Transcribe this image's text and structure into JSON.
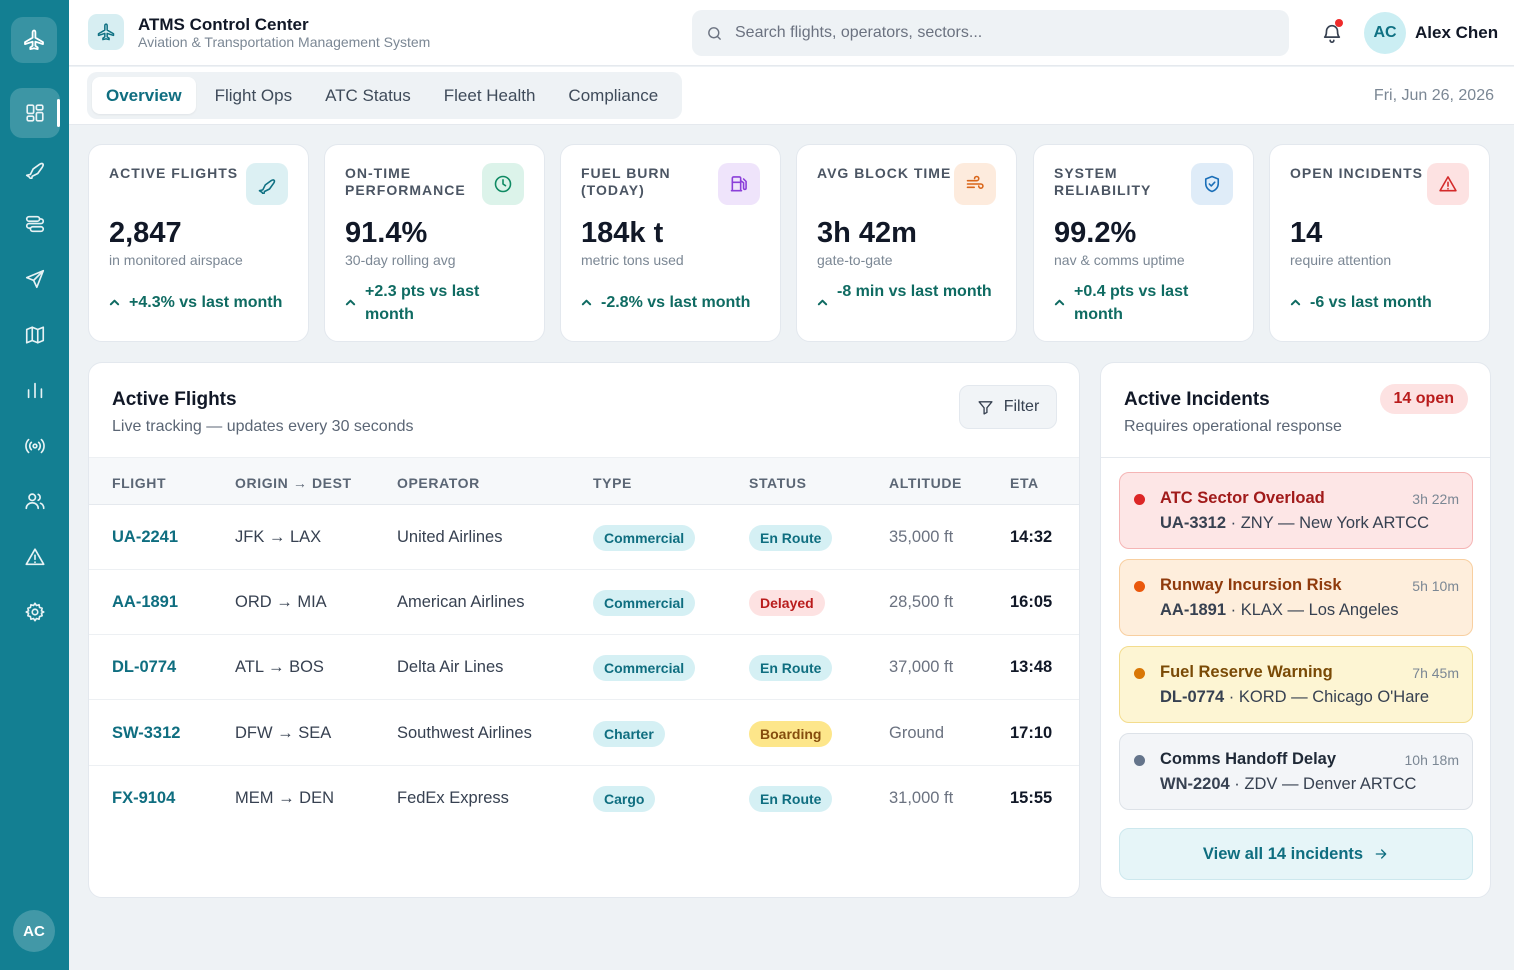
{
  "app": {
    "title": "ATMS Control Center",
    "subtitle": "Aviation & Transportation Management System",
    "brand_color": "#137f92"
  },
  "search": {
    "placeholder": "Search flights, operators, sectors..."
  },
  "user": {
    "initials": "AC",
    "name": "Alex Chen",
    "has_notification": true
  },
  "sidebar": {
    "logo_icon": "airplane-icon",
    "items": [
      {
        "icon": "dashboard-grid-icon",
        "active": true
      },
      {
        "icon": "plane-departure-icon",
        "active": false
      },
      {
        "icon": "route-icon",
        "active": false
      },
      {
        "icon": "send-navigation-icon",
        "active": false
      },
      {
        "icon": "map-icon",
        "active": false
      },
      {
        "icon": "bar-chart-icon",
        "active": false
      },
      {
        "icon": "radio-signal-icon",
        "active": false
      },
      {
        "icon": "users-icon",
        "active": false
      },
      {
        "icon": "alert-triangle-icon",
        "active": false
      },
      {
        "icon": "settings-gear-icon",
        "active": false
      }
    ],
    "user_initials": "AC"
  },
  "tabs": [
    {
      "label": "Overview",
      "active": true
    },
    {
      "label": "Flight Ops",
      "active": false
    },
    {
      "label": "ATC Status",
      "active": false
    },
    {
      "label": "Fleet Health",
      "active": false
    },
    {
      "label": "Compliance",
      "active": false
    }
  ],
  "date": "Fri, Jun 26, 2026",
  "kpis": [
    {
      "label": "Active Flights",
      "value": "2,847",
      "sub": "in monitored airspace",
      "trend": "+4.3% vs last month",
      "icon": "plane-icon",
      "icon_color": "#0f7183",
      "icon_bg": "#dcf0f3"
    },
    {
      "label": "On-Time Performance",
      "value": "91.4%",
      "sub": "30-day rolling avg",
      "trend": "+2.3 pts vs last month",
      "icon": "clock-icon",
      "icon_color": "#0f8a63",
      "icon_bg": "#dcf3ea"
    },
    {
      "label": "Fuel Burn (Today)",
      "value": "184k t",
      "sub": "metric tons used",
      "trend": "-2.8% vs last month",
      "icon": "fuel-pump-icon",
      "icon_color": "#8b3fd9",
      "icon_bg": "#efe4fb"
    },
    {
      "label": "Avg Block Time",
      "value": "3h 42m",
      "sub": "gate-to-gate",
      "trend": "-8 min vs last month",
      "icon": "wind-icon",
      "icon_color": "#d9661a",
      "icon_bg": "#fdebdd"
    },
    {
      "label": "System Reliability",
      "value": "99.2%",
      "sub": "nav & comms uptime",
      "trend": "+0.4 pts vs last month",
      "icon": "shield-check-icon",
      "icon_color": "#1b6fb8",
      "icon_bg": "#dfecf8"
    },
    {
      "label": "Open Incidents",
      "value": "14",
      "sub": "require attention",
      "trend": "-6 vs last month",
      "icon": "alert-triangle-icon",
      "icon_color": "#d42a2a",
      "icon_bg": "#fde2e2"
    }
  ],
  "flights": {
    "title": "Active Flights",
    "subtitle": "Live tracking — updates every 30 seconds",
    "filter_label": "Filter",
    "columns": [
      "FLIGHT",
      "ORIGIN → DEST",
      "OPERATOR",
      "TYPE",
      "STATUS",
      "ALTITUDE",
      "ETA"
    ],
    "rows": [
      {
        "flight": "UA-2241",
        "route": "JFK → LAX",
        "operator": "United Airlines",
        "type": "Commercial",
        "status": "En Route",
        "altitude": "35,000 ft",
        "eta": "14:32"
      },
      {
        "flight": "AA-1891",
        "route": "ORD → MIA",
        "operator": "American Airlines",
        "type": "Commercial",
        "status": "Delayed",
        "altitude": "28,500 ft",
        "eta": "16:05"
      },
      {
        "flight": "DL-0774",
        "route": "ATL → BOS",
        "operator": "Delta Air Lines",
        "type": "Commercial",
        "status": "En Route",
        "altitude": "37,000 ft",
        "eta": "13:48"
      },
      {
        "flight": "SW-3312",
        "route": "DFW → SEA",
        "operator": "Southwest Airlines",
        "type": "Charter",
        "status": "Boarding",
        "altitude": "Ground",
        "eta": "17:10"
      },
      {
        "flight": "FX-9104",
        "route": "MEM → DEN",
        "operator": "FedEx Express",
        "type": "Cargo",
        "status": "En Route",
        "altitude": "31,000 ft",
        "eta": "15:55"
      }
    ]
  },
  "incidents": {
    "title": "Active Incidents",
    "subtitle": "Requires operational response",
    "badge": "14 open",
    "items": [
      {
        "title": "ATC Sector Overload",
        "time": "3h 22m",
        "flight": "UA-3312",
        "detail": " · ZNY — New York ARTCC",
        "severity": "critical",
        "dot": "#dc2626",
        "bg": "#fde6e6",
        "border": "#f5b5b5",
        "title_color": "#a11b1b"
      },
      {
        "title": "Runway Incursion Risk",
        "time": "5h 10m",
        "flight": "AA-1891",
        "detail": " · KLAX — Los Angeles",
        "severity": "high",
        "dot": "#ea580c",
        "bg": "#feeedc",
        "border": "#f8cfa0",
        "title_color": "#8f3a0c"
      },
      {
        "title": "Fuel Reserve Warning",
        "time": "7h 45m",
        "flight": "DL-0774",
        "detail": " · KORD — Chicago O'Hare",
        "severity": "medium",
        "dot": "#d97706",
        "bg": "#fdf5d3",
        "border": "#f3dc8d",
        "title_color": "#7a4a06"
      },
      {
        "title": "Comms Handoff Delay",
        "time": "10h 18m",
        "flight": "WN-2204",
        "detail": " · ZDV — Denver ARTCC",
        "severity": "low",
        "dot": "#64748b",
        "bg": "#f3f5f8",
        "border": "#dde2e8",
        "title_color": "#1f2937"
      }
    ],
    "view_all_label": "View all 14 incidents"
  },
  "pill_styles": {
    "Commercial": {
      "bg": "#d5f0f4",
      "fg": "#0f6e80"
    },
    "Charter": {
      "bg": "#d5f0f4",
      "fg": "#0f6e80"
    },
    "Cargo": {
      "bg": "#d5f0f4",
      "fg": "#0f6e80"
    },
    "En Route": {
      "bg": "#d5f0f4",
      "fg": "#0f6e80"
    },
    "Delayed": {
      "bg": "#fde2e2",
      "fg": "#b91c1c"
    },
    "Boarding": {
      "bg": "#fde68a",
      "fg": "#854d0e"
    }
  }
}
